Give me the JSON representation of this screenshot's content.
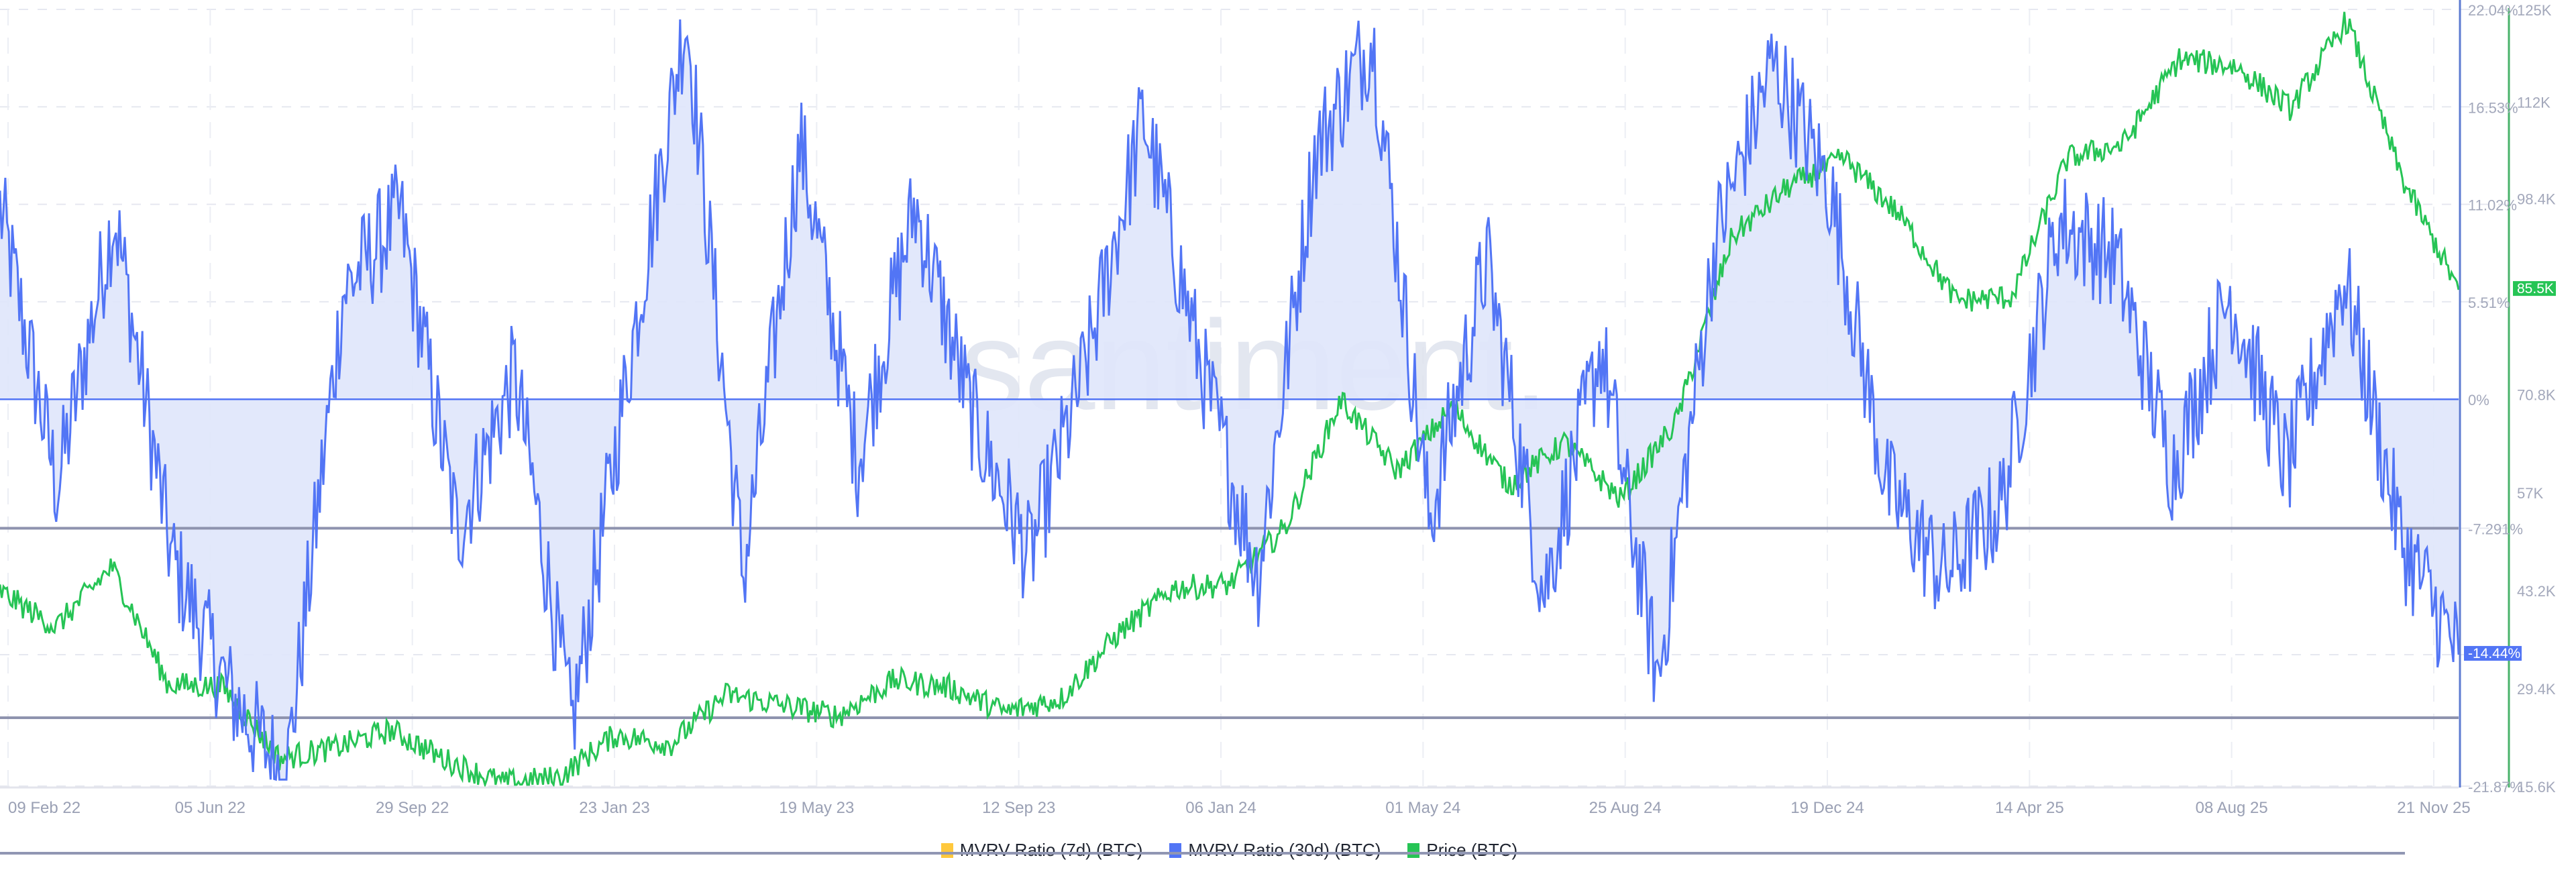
{
  "chart_data": {
    "type": "line",
    "title": "",
    "watermark": "santiment.",
    "xlabel": "",
    "x_ticks": [
      "09 Feb 22",
      "05 Jun 22",
      "29 Sep 22",
      "23 Jan 23",
      "19 May 23",
      "12 Sep 23",
      "06 Jan 24",
      "01 May 24",
      "25 Aug 24",
      "19 Dec 24",
      "14 Apr 25",
      "08 Aug 25",
      "21 Nov 25"
    ],
    "y_axis_left_label": "MVRV Ratio (30d) %",
    "y_ticks_mvrv": [
      "22.04%",
      "16.53%",
      "11.02%",
      "5.51%",
      "0%",
      "-7.291%",
      "-14.44%",
      "-21.87%"
    ],
    "ylim_mvrv": [
      -21.87,
      22.04
    ],
    "y_ticks_price": [
      "125K",
      "112K",
      "98.4K",
      "85.5K",
      "70.8K",
      "57K",
      "43.2K",
      "29.4K",
      "15.6K"
    ],
    "ylim_price": [
      15600,
      125000
    ],
    "reference_lines_mvrv": [
      -7.291,
      -18.0
    ],
    "current_values": {
      "mvrv_30d": "-14.44%",
      "price": "85.5K"
    },
    "grid": true,
    "legend_position": "bottom",
    "series": [
      {
        "name": "MVRV Ratio (7d) (BTC)",
        "color": "#ffc83d",
        "values": []
      },
      {
        "name": "MVRV Ratio (30d) (BTC)",
        "color": "#5275f5",
        "fill": "#dfe6fb",
        "key_points": [
          [
            "09 Feb 22",
            10.8
          ],
          [
            "Mar 22",
            -5.0
          ],
          [
            "Apr 22",
            10.5
          ],
          [
            "May 22",
            -9.0
          ],
          [
            "05 Jun 22",
            -16.5
          ],
          [
            "Jun 22",
            -21.5
          ],
          [
            "Jul 22",
            6.0
          ],
          [
            "Aug 22",
            10.5
          ],
          [
            "Sep 22",
            -7.5
          ],
          [
            "29 Sep 22",
            1.5
          ],
          [
            "Nov 22",
            -18.5
          ],
          [
            "Dec 22",
            2.0
          ],
          [
            "23 Jan 23",
            21.8
          ],
          [
            "Mar 23",
            -10.0
          ],
          [
            "Mar 23b",
            14.5
          ],
          [
            "19 May 23",
            -3.5
          ],
          [
            "Jul 23",
            11.0
          ],
          [
            "Aug 23",
            -1.0
          ],
          [
            "12 Sep 23",
            -9.0
          ],
          [
            "Oct 23",
            2.0
          ],
          [
            "Nov 23",
            16.0
          ],
          [
            "Dec 23",
            2.0
          ],
          [
            "06 Jan 24",
            -10.0
          ],
          [
            "Feb 24",
            14.0
          ],
          [
            "Mar 24",
            20.5
          ],
          [
            "01 May 24",
            -7.0
          ],
          [
            "Jun 24",
            8.0
          ],
          [
            "Jul 24",
            -11.0
          ],
          [
            "25 Aug 24",
            3.0
          ],
          [
            "Sep 24",
            -16.0
          ],
          [
            "Oct 24",
            9.0
          ],
          [
            "Nov 24",
            19.0
          ],
          [
            "19 Dec 24",
            12.0
          ],
          [
            "Jan 25",
            -5.0
          ],
          [
            "Feb 25",
            -10.0
          ],
          [
            "Mar 25",
            -6.0
          ],
          [
            "14 Apr 25",
            10.0
          ],
          [
            "May 25",
            8.0
          ],
          [
            "Jun 25",
            -4.0
          ],
          [
            "08 Aug 25",
            6.0
          ],
          [
            "Sep 25",
            -4.0
          ],
          [
            "Oct 25",
            7.0
          ],
          [
            "Nov 25",
            -8.0
          ],
          [
            "21 Nov 25",
            -14.44
          ]
        ]
      },
      {
        "name": "Price (BTC)",
        "color": "#26c455",
        "key_points": [
          [
            "09 Feb 22",
            43000
          ],
          [
            "Mar 22",
            38000
          ],
          [
            "Apr 22",
            46500
          ],
          [
            "May 22",
            30000
          ],
          [
            "05 Jun 22",
            29500
          ],
          [
            "Jun 22",
            19500
          ],
          [
            "Jul 22",
            21000
          ],
          [
            "Aug 22",
            23500
          ],
          [
            "29 Sep 22",
            19200
          ],
          [
            "Nov 22",
            16000
          ],
          [
            "Dec 22",
            16800
          ],
          [
            "23 Jan 23",
            22800
          ],
          [
            "Mar 23",
            21500
          ],
          [
            "Apr 23",
            28500
          ],
          [
            "19 May 23",
            27000
          ],
          [
            "Jun 23",
            25500
          ],
          [
            "Jul 23",
            30500
          ],
          [
            "Aug 23",
            29500
          ],
          [
            "12 Sep 23",
            26000
          ],
          [
            "Oct 23",
            28000
          ],
          [
            "Nov 23",
            37000
          ],
          [
            "Dec 23",
            43500
          ],
          [
            "06 Jan 24",
            44000
          ],
          [
            "Feb 24",
            52000
          ],
          [
            "Mar 24",
            70000
          ],
          [
            "01 May 24",
            60000
          ],
          [
            "Jun 24",
            69000
          ],
          [
            "Jul 24",
            58000
          ],
          [
            "25 Aug 24",
            64000
          ],
          [
            "Sep 24",
            56000
          ],
          [
            "Oct 24",
            67000
          ],
          [
            "Nov 24",
            93000
          ],
          [
            "19 Dec 24",
            100000
          ],
          [
            "Jan 25",
            104000
          ],
          [
            "Feb 25",
            96000
          ],
          [
            "Mar 25",
            84000
          ],
          [
            "14 Apr 25",
            84500
          ],
          [
            "May 25",
            104000
          ],
          [
            "Jun 25",
            106000
          ],
          [
            "Jul 25",
            118000
          ],
          [
            "08 Aug 25",
            117000
          ],
          [
            "Sep 25",
            111000
          ],
          [
            "Oct 25",
            123500
          ],
          [
            "Nov 25",
            101000
          ],
          [
            "21 Nov 25",
            85500
          ]
        ]
      }
    ]
  },
  "legend": {
    "items": [
      {
        "label": "MVRV Ratio (7d) (BTC)",
        "color": "#ffc83d"
      },
      {
        "label": "MVRV Ratio (30d) (BTC)",
        "color": "#5275f5"
      },
      {
        "label": "Price (BTC)",
        "color": "#26c455"
      }
    ]
  },
  "badges": {
    "mvrv": {
      "label": "-14.44%",
      "color": "#5275f5"
    },
    "price": {
      "label": "85.5K",
      "color": "#26c455"
    }
  }
}
